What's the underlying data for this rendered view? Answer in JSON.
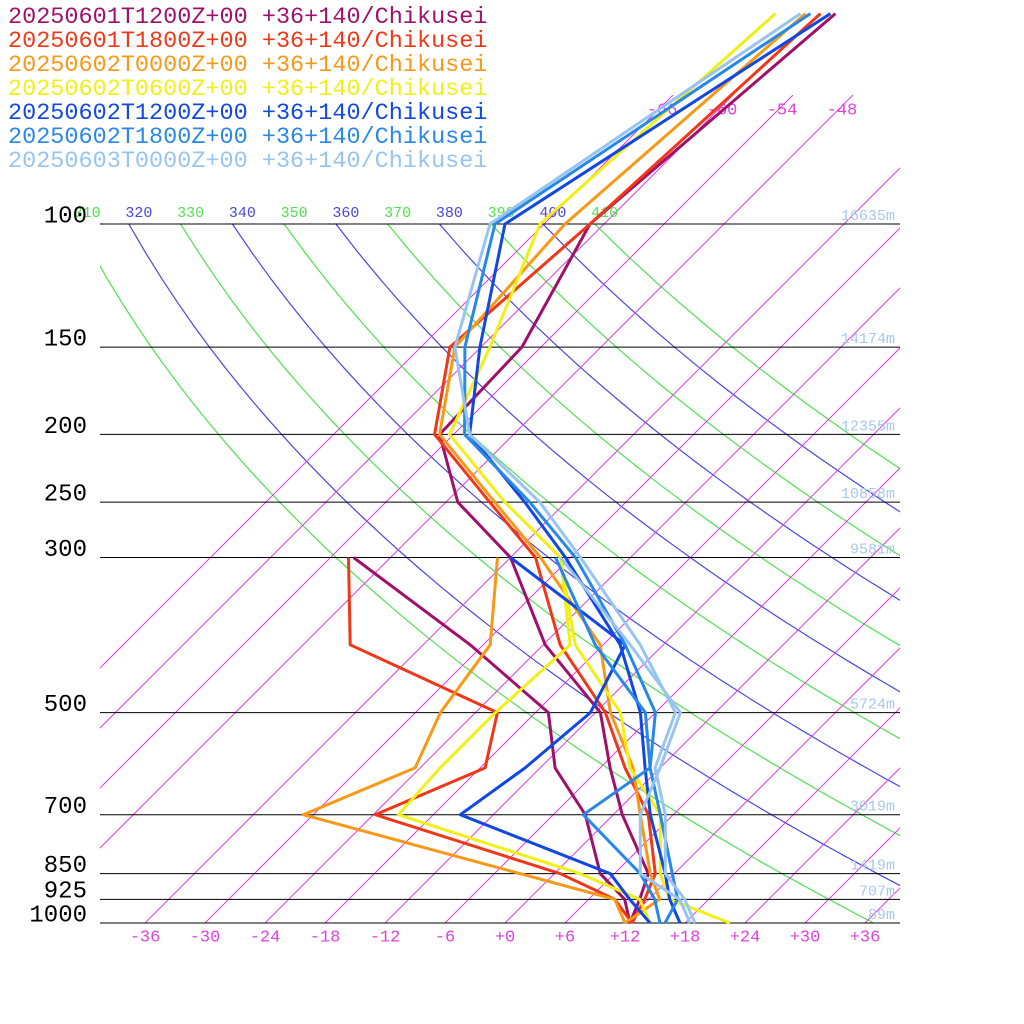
{
  "chart_data": {
    "type": "skewt",
    "levels": [
      1000,
      925,
      850,
      700,
      600,
      500,
      400,
      300,
      250,
      200,
      150,
      100,
      50
    ],
    "ylim": [
      1000,
      100
    ],
    "log_y": true,
    "yticks": [
      100,
      150,
      200,
      250,
      300,
      500,
      700,
      850,
      925,
      1000
    ],
    "height_labels": [
      "16635m",
      "14174m",
      "12355m",
      "10858m",
      "9581m",
      "5724m",
      "3019m",
      "1419m",
      "707m",
      "89m"
    ],
    "xlim": [
      -40.5,
      39.5
    ],
    "xticks": [
      -36,
      -30,
      -24,
      -18,
      -12,
      -6,
      {
        "value": 0,
        "label": "+0"
      },
      {
        "value": 6,
        "label": "+6"
      },
      {
        "value": 12,
        "label": "+12"
      },
      {
        "value": 18,
        "label": "+18"
      },
      {
        "value": 24,
        "label": "+24"
      },
      {
        "value": 30,
        "label": "+30"
      },
      {
        "value": 36,
        "label": "+36"
      }
    ],
    "isotherm_labels": [
      -66,
      -60,
      -54,
      -48
    ],
    "isotherm_color": "#e040e0",
    "theta_labels": [
      310,
      320,
      330,
      340,
      350,
      360,
      370,
      380,
      390,
      400,
      410
    ],
    "adiabat_colors": [
      "#50e050",
      "#4848e0"
    ],
    "series": [
      {
        "name": "20250601T1200Z+00 +36+140/Chikusei",
        "color": "#a0106a",
        "values": [
          12.5,
          11.1,
          9.4,
          0.9,
          -5,
          -11.5,
          -23.8,
          -36,
          -46.8,
          -55.4,
          -55.9,
          -61.4,
          -57.9
        ],
        "dewpoint": [
          12.5,
          9.6,
          4.6,
          -2.8,
          -10.5,
          -16.7,
          -31.3,
          -51.7,
          null,
          null,
          null,
          null,
          null
        ]
      },
      {
        "name": "20250601T1800Z+00 +36+140/Chikusei",
        "color": "#f03818",
        "values": [
          12.7,
          11.6,
          10.1,
          3.5,
          -3.5,
          -11,
          -22.3,
          -33.5,
          -43.6,
          -55.9,
          -63.1,
          -61.4,
          -59.4
        ],
        "dewpoint": [
          12.7,
          8.6,
          0.6,
          -23.8,
          -17.5,
          -21.8,
          -43.3,
          -52.2,
          null,
          null,
          null,
          null,
          null
        ]
      },
      {
        "name": "20250602T0000Z+00 +36+140/Chikusei",
        "color": "#f89818",
        "values": [
          12,
          13.1,
          9.6,
          2.7,
          -2.7,
          -10.5,
          -18.3,
          -33,
          -43.1,
          -55.4,
          -62.6,
          -63.9,
          -60.9
        ],
        "dewpoint": [
          12,
          8.6,
          -3.4,
          -31,
          -24.5,
          -27.5,
          -29.3,
          -37.3,
          null,
          null,
          null,
          null,
          null
        ]
      },
      {
        "name": "20250602T0600Z+00 +36+140/Chikusei",
        "color": "#f0f018",
        "values": [
          22.5,
          14.1,
          10.6,
          4.7,
          -3,
          -9.5,
          -20.8,
          -31,
          -42.1,
          -54.4,
          -59.1,
          -66.4,
          -63.9
        ],
        "dewpoint": [
          14.5,
          11.1,
          2.6,
          -21.5,
          -22,
          -22,
          -21.3,
          -31,
          null,
          null,
          null,
          null,
          null
        ]
      },
      {
        "name": "20250602T1200Z+00 +36+140/Chikusei",
        "color": "#1048e0",
        "values": [
          17.5,
          14.1,
          11.1,
          3.7,
          -1.5,
          -7.5,
          -16.3,
          -30.5,
          -40.1,
          -52.4,
          -60.1,
          -69.9,
          -58.4
        ],
        "dewpoint": [
          14.5,
          10.1,
          5.6,
          -15.3,
          -13.5,
          -12.5,
          -15.8,
          -36,
          null,
          null,
          null,
          null,
          null
        ]
      },
      {
        "name": "20250602T1800Z+00 +36+140/Chikusei",
        "color": "#2888e8",
        "values": [
          16,
          14.9,
          11.8,
          4.7,
          -1,
          -6,
          -15.8,
          -29.5,
          -39.6,
          -52.9,
          -61.6,
          -70.9,
          -60.4
        ],
        "dewpoint": [
          15.5,
          12.6,
          8.6,
          -3,
          -1,
          -7,
          -18.8,
          -31.5,
          null,
          null,
          null,
          null,
          null
        ]
      },
      {
        "name": "20250603T0000Z+00 +36+140/Chikusei",
        "color": "#98c4f0",
        "values": [
          19,
          15.6,
          11.1,
          5.2,
          -0.5,
          -4,
          -14.3,
          -29,
          -38.6,
          -52.4,
          -62.6,
          -71.4,
          -61.4
        ],
        "dewpoint": [
          18.5,
          15.1,
          8.6,
          2.7,
          0,
          -3.5,
          -15.3,
          -31,
          null,
          null,
          null,
          null,
          null
        ]
      }
    ]
  }
}
